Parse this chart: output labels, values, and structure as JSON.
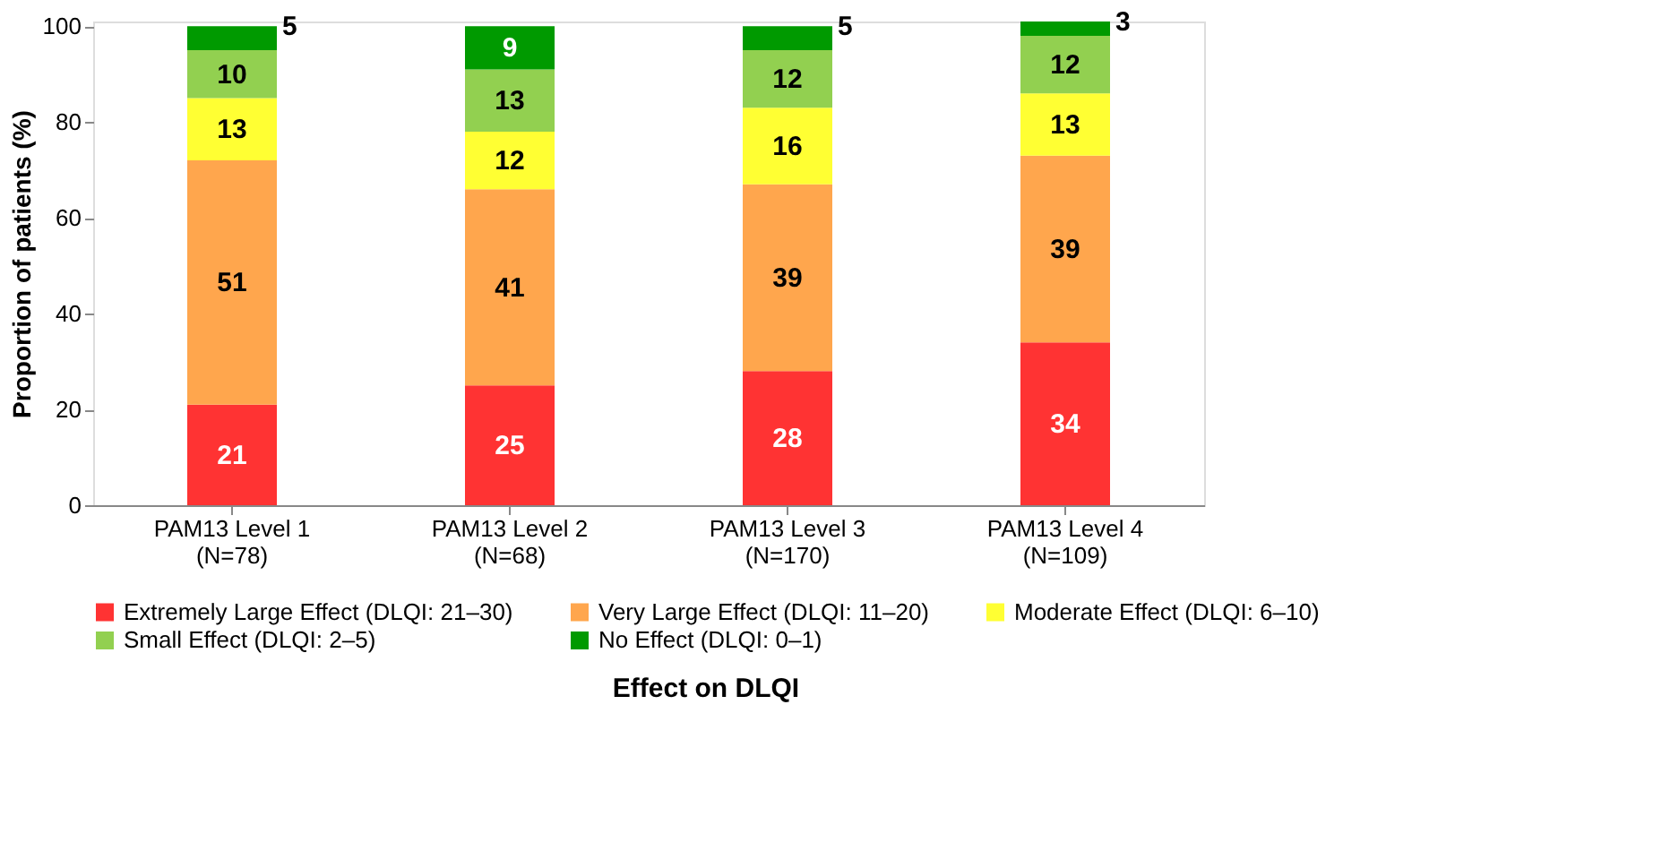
{
  "chart_data": {
    "type": "bar",
    "stacked": true,
    "ylabel": "Proportion of patients (%)",
    "legend_title": "Effect on DLQI",
    "legend": "bottom",
    "data_labels": true,
    "grid": false,
    "categories": [
      "PAM13 Level 1\n(N=78)",
      "PAM13 Level 2\n(N=68)",
      "PAM13 Level 3\n(N=170)",
      "PAM13 Level 4\n(N=109)"
    ],
    "ylim": [
      0,
      101
    ],
    "yticks": [
      0,
      20,
      40,
      60,
      80,
      100
    ],
    "series": [
      {
        "name": "Extremely Large Effect (DLQI: 21–30)",
        "color": "#ff3333",
        "values": [
          21,
          25,
          28,
          34
        ]
      },
      {
        "name": "Very Large Effect (DLQI: 11–20)",
        "color": "#ffa64d",
        "values": [
          51,
          41,
          39,
          39
        ]
      },
      {
        "name": "Moderate Effect (DLQI: 6–10)",
        "color": "#ffff33",
        "values": [
          13,
          12,
          16,
          13
        ]
      },
      {
        "name": "Small Effect (DLQI: 2–5)",
        "color": "#92d050",
        "values": [
          10,
          13,
          12,
          12
        ]
      },
      {
        "name": "No Effect (DLQI: 0–1)",
        "color": "#009a00",
        "values": [
          5,
          9,
          5,
          3
        ]
      }
    ]
  }
}
